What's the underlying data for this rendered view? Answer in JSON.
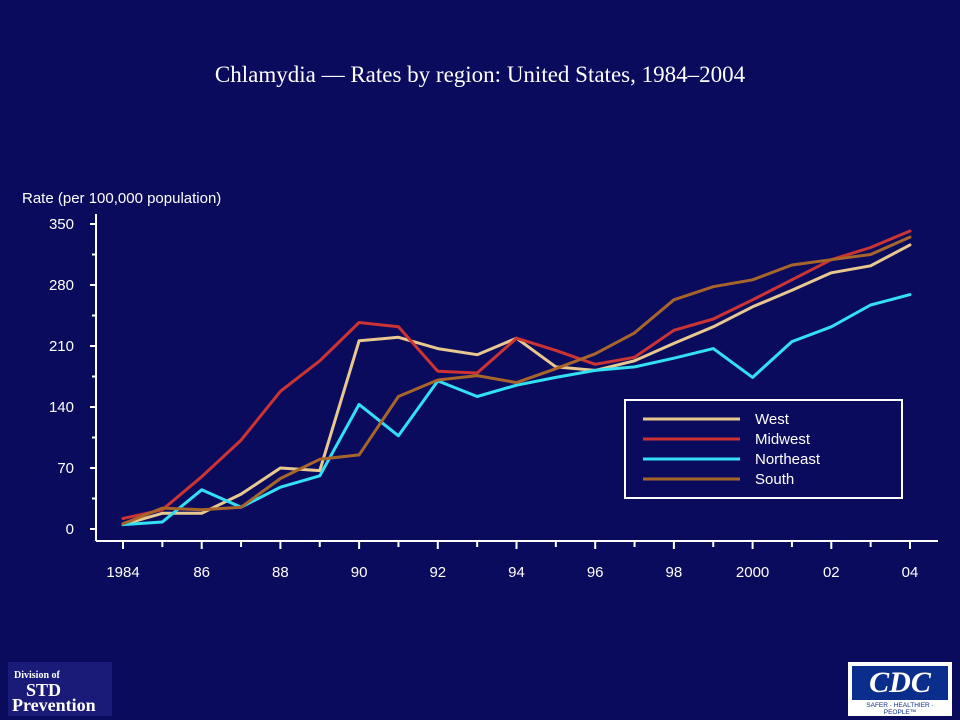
{
  "chart_data": {
    "type": "line",
    "title": "Chlamydia — Rates by region: United States, 1984–2004",
    "ylabel": "Rate (per 100,000 population)",
    "xlabel": "",
    "ylim": [
      0,
      350
    ],
    "xlim": [
      1984,
      2004
    ],
    "yticks": [
      0,
      70,
      140,
      210,
      280,
      350
    ],
    "xticks": [
      1984,
      1986,
      1988,
      1990,
      1992,
      1994,
      1996,
      1998,
      2000,
      2002,
      2004
    ],
    "xtick_labels": [
      "1984",
      "86",
      "88",
      "90",
      "92",
      "94",
      "96",
      "98",
      "2000",
      "02",
      "04"
    ],
    "x": [
      1984,
      1985,
      1986,
      1987,
      1988,
      1989,
      1990,
      1991,
      1992,
      1993,
      1994,
      1995,
      1996,
      1997,
      1998,
      1999,
      2000,
      2001,
      2002,
      2003,
      2004
    ],
    "legend_position": "right",
    "grid": false,
    "series": [
      {
        "name": "West",
        "color": "#e8c88f",
        "values": [
          5,
          18,
          18,
          40,
          70,
          67,
          216,
          220,
          207,
          200,
          219,
          186,
          182,
          193,
          213,
          232,
          255,
          274,
          294,
          302,
          326
        ]
      },
      {
        "name": "Midwest",
        "color": "#cc3333",
        "values": [
          12,
          22,
          60,
          102,
          158,
          193,
          237,
          232,
          181,
          179,
          219,
          205,
          189,
          197,
          228,
          241,
          263,
          286,
          309,
          323,
          342
        ]
      },
      {
        "name": "Northeast",
        "color": "#33e0f2",
        "values": [
          5,
          8,
          45,
          25,
          48,
          61,
          143,
          107,
          170,
          152,
          165,
          174,
          182,
          186,
          196,
          207,
          174,
          215,
          232,
          257,
          269
        ]
      },
      {
        "name": "South",
        "color": "#a8652a",
        "values": [
          6,
          24,
          22,
          25,
          58,
          80,
          85,
          152,
          171,
          176,
          168,
          184,
          201,
          225,
          263,
          278,
          286,
          303,
          309,
          315,
          335
        ]
      }
    ]
  },
  "logos": {
    "std_line1": "Division of",
    "std_line2": "STD",
    "std_line3": "Prevention",
    "cdc_mark": "CDC",
    "cdc_tagline": "SAFER · HEALTHIER · PEOPLE™"
  }
}
